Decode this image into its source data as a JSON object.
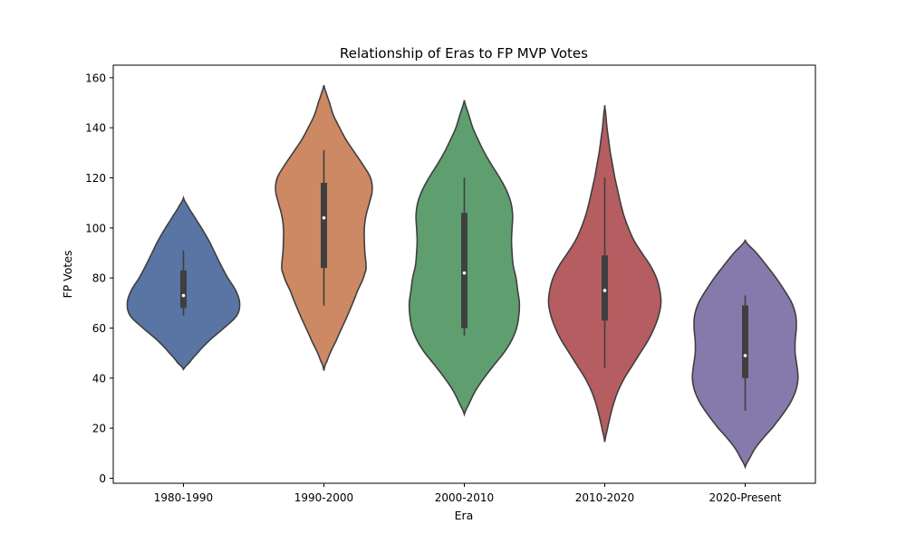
{
  "chart_data": {
    "type": "violin",
    "title": "Relationship of Eras to FP MVP Votes",
    "xlabel": "Era",
    "ylabel": "FP Votes",
    "ylim": [
      -2,
      165
    ],
    "yticks": [
      0,
      20,
      40,
      60,
      80,
      100,
      120,
      140,
      160
    ],
    "grid": false,
    "legend": "none",
    "categories": [
      "1980-1990",
      "1990-2000",
      "2000-2010",
      "2010-2020",
      "2020-Present"
    ],
    "colors": [
      "#5975a4",
      "#cc8963",
      "#5f9e6e",
      "#b55d60",
      "#857aab"
    ],
    "violins": [
      {
        "category": "1980-1990",
        "range": [
          43.5,
          112
        ],
        "box": {
          "whisker_low": 65,
          "q1": 68,
          "median": 73,
          "q3": 83,
          "whisker_high": 91
        },
        "density": [
          [
            43.5,
            0
          ],
          [
            46,
            0.1
          ],
          [
            50,
            0.25
          ],
          [
            55,
            0.46
          ],
          [
            60,
            0.72
          ],
          [
            65,
            0.95
          ],
          [
            70,
            1.0
          ],
          [
            75,
            0.93
          ],
          [
            80,
            0.79
          ],
          [
            85,
            0.67
          ],
          [
            90,
            0.56
          ],
          [
            95,
            0.45
          ],
          [
            100,
            0.32
          ],
          [
            105,
            0.18
          ],
          [
            109,
            0.07
          ],
          [
            112,
            0
          ]
        ]
      },
      {
        "category": "1990-2000",
        "range": [
          43,
          157
        ],
        "box": {
          "whisker_low": 69,
          "q1": 84,
          "median": 104,
          "q3": 118,
          "whisker_high": 131
        },
        "density": [
          [
            43,
            0
          ],
          [
            47,
            0.06
          ],
          [
            55,
            0.22
          ],
          [
            65,
            0.42
          ],
          [
            75,
            0.6
          ],
          [
            82,
            0.73
          ],
          [
            85,
            0.75
          ],
          [
            90,
            0.73
          ],
          [
            95,
            0.72
          ],
          [
            100,
            0.72
          ],
          [
            105,
            0.75
          ],
          [
            110,
            0.81
          ],
          [
            115,
            0.86
          ],
          [
            120,
            0.83
          ],
          [
            125,
            0.7
          ],
          [
            130,
            0.55
          ],
          [
            135,
            0.4
          ],
          [
            140,
            0.28
          ],
          [
            145,
            0.17
          ],
          [
            150,
            0.1
          ],
          [
            154,
            0.04
          ],
          [
            157,
            0
          ]
        ]
      },
      {
        "category": "2000-2010",
        "range": [
          25.5,
          151
        ],
        "box": {
          "whisker_low": 57,
          "q1": 60,
          "median": 82,
          "q3": 106,
          "whisker_high": 120
        },
        "density": [
          [
            25.5,
            0
          ],
          [
            30,
            0.09
          ],
          [
            35,
            0.2
          ],
          [
            40,
            0.35
          ],
          [
            45,
            0.52
          ],
          [
            50,
            0.7
          ],
          [
            55,
            0.84
          ],
          [
            60,
            0.93
          ],
          [
            65,
            0.97
          ],
          [
            70,
            0.98
          ],
          [
            75,
            0.95
          ],
          [
            80,
            0.92
          ],
          [
            85,
            0.87
          ],
          [
            90,
            0.85
          ],
          [
            95,
            0.84
          ],
          [
            100,
            0.85
          ],
          [
            105,
            0.86
          ],
          [
            110,
            0.83
          ],
          [
            115,
            0.75
          ],
          [
            120,
            0.63
          ],
          [
            125,
            0.49
          ],
          [
            130,
            0.36
          ],
          [
            135,
            0.25
          ],
          [
            140,
            0.15
          ],
          [
            145,
            0.08
          ],
          [
            151,
            0
          ]
        ]
      },
      {
        "category": "2010-2020",
        "range": [
          14.5,
          149
        ],
        "box": {
          "whisker_low": 44,
          "q1": 63,
          "median": 75,
          "q3": 89,
          "whisker_high": 120
        },
        "density": [
          [
            14.5,
            0
          ],
          [
            20,
            0.05
          ],
          [
            25,
            0.1
          ],
          [
            30,
            0.16
          ],
          [
            35,
            0.24
          ],
          [
            40,
            0.35
          ],
          [
            45,
            0.49
          ],
          [
            50,
            0.63
          ],
          [
            55,
            0.77
          ],
          [
            60,
            0.88
          ],
          [
            65,
            0.96
          ],
          [
            70,
            1.0
          ],
          [
            75,
            0.98
          ],
          [
            80,
            0.92
          ],
          [
            85,
            0.81
          ],
          [
            90,
            0.66
          ],
          [
            95,
            0.52
          ],
          [
            100,
            0.42
          ],
          [
            105,
            0.34
          ],
          [
            110,
            0.28
          ],
          [
            115,
            0.23
          ],
          [
            120,
            0.18
          ],
          [
            125,
            0.14
          ],
          [
            130,
            0.1
          ],
          [
            135,
            0.07
          ],
          [
            140,
            0.04
          ],
          [
            145,
            0.02
          ],
          [
            149,
            0
          ]
        ]
      },
      {
        "category": "2020-Present",
        "range": [
          4.5,
          95
        ],
        "box": {
          "whisker_low": 27,
          "q1": 40,
          "median": 49,
          "q3": 69,
          "whisker_high": 73
        },
        "density": [
          [
            4.5,
            0
          ],
          [
            8,
            0.08
          ],
          [
            12,
            0.18
          ],
          [
            16,
            0.32
          ],
          [
            20,
            0.48
          ],
          [
            25,
            0.65
          ],
          [
            30,
            0.8
          ],
          [
            35,
            0.9
          ],
          [
            40,
            0.94
          ],
          [
            45,
            0.92
          ],
          [
            50,
            0.89
          ],
          [
            55,
            0.89
          ],
          [
            60,
            0.91
          ],
          [
            65,
            0.9
          ],
          [
            70,
            0.83
          ],
          [
            75,
            0.7
          ],
          [
            80,
            0.55
          ],
          [
            85,
            0.38
          ],
          [
            90,
            0.2
          ],
          [
            95,
            0
          ]
        ]
      }
    ]
  }
}
